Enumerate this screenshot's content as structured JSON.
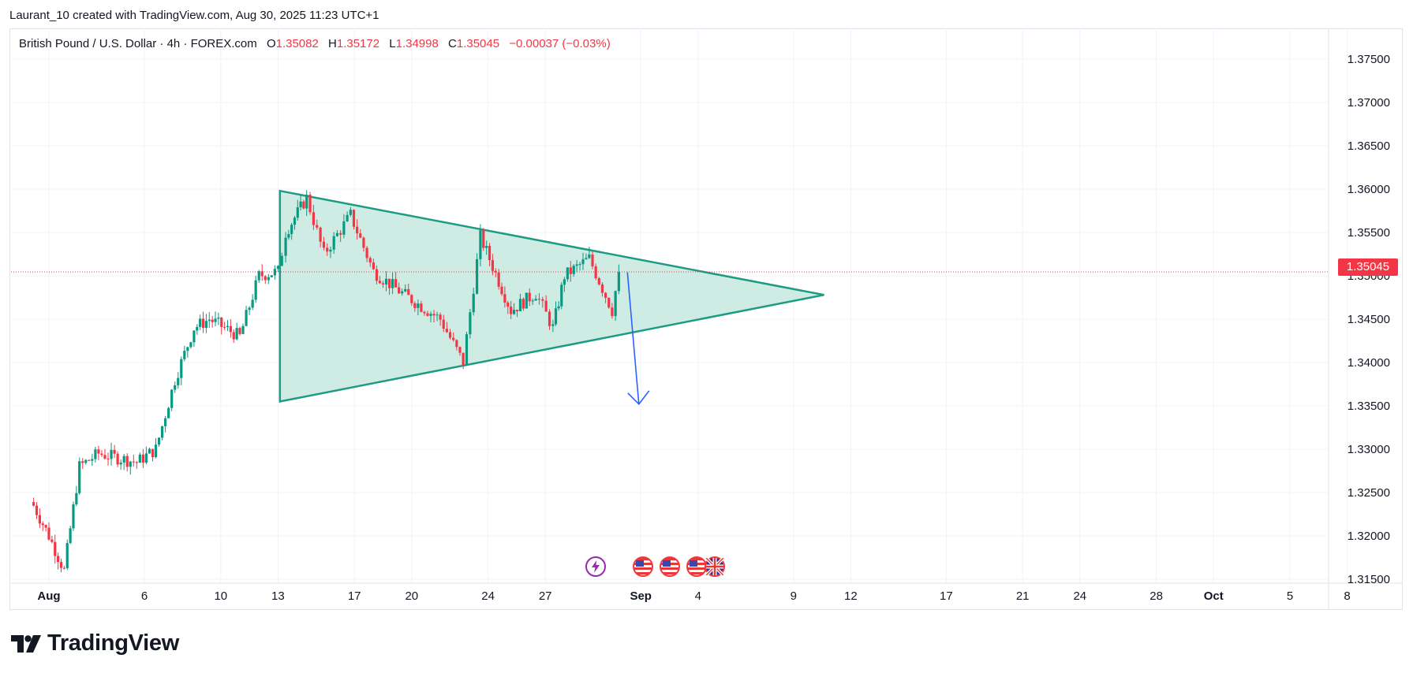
{
  "header": {
    "credit": "Laurant_10 created with TradingView.com, Aug 30, 2025 11:23 UTC+1"
  },
  "legend": {
    "symbol": "British Pound / U.S. Dollar · 4h · FOREX.com",
    "open_label": "O",
    "open": "1.35082",
    "high_label": "H",
    "high": "1.35172",
    "low_label": "L",
    "low": "1.34998",
    "close_label": "C",
    "close": "1.35045",
    "change": "−0.00037 (−0.03%)"
  },
  "current_price": {
    "label": "1.35045",
    "value": 1.35045
  },
  "brand": {
    "name": "TradingView"
  },
  "colors": {
    "up": "#089981",
    "down": "#f23645",
    "triangle_stroke": "#1e9b83",
    "triangle_fill": "#bfe6db",
    "arrow": "#2962ff",
    "grid": "#f0f3fa"
  },
  "events": [
    {
      "type": "lightning-icon",
      "color": "#9c27b0"
    },
    {
      "type": "us-flag-icon"
    },
    {
      "type": "us-flag-icon"
    },
    {
      "type": "us-flag-icon"
    },
    {
      "type": "uk-flag-icon"
    }
  ],
  "chart_data": {
    "type": "candlestick",
    "interval": "4h",
    "y_axis": {
      "ticks": [
        1.375,
        1.37,
        1.365,
        1.36,
        1.355,
        1.35,
        1.345,
        1.34,
        1.335,
        1.33,
        1.325,
        1.32,
        1.315
      ],
      "tick_labels": [
        "1.37500",
        "1.37000",
        "1.36500",
        "1.36000",
        "1.35500",
        "1.35000",
        "1.34500",
        "1.34000",
        "1.33500",
        "1.33000",
        "1.32500",
        "1.32000",
        "1.31500"
      ]
    },
    "x_axis": {
      "ticks": [
        {
          "label": "Aug",
          "day": 1
        },
        {
          "label": "6",
          "day": 6
        },
        {
          "label": "10",
          "day": 10
        },
        {
          "label": "13",
          "day": 13
        },
        {
          "label": "17",
          "day": 17
        },
        {
          "label": "20",
          "day": 20
        },
        {
          "label": "24",
          "day": 24
        },
        {
          "label": "27",
          "day": 27
        },
        {
          "label": "Sep",
          "day": 32
        },
        {
          "label": "4",
          "day": 35
        },
        {
          "label": "9",
          "day": 40
        },
        {
          "label": "12",
          "day": 43
        },
        {
          "label": "17",
          "day": 48
        },
        {
          "label": "21",
          "day": 52
        },
        {
          "label": "24",
          "day": 55
        },
        {
          "label": "28",
          "day": 59
        },
        {
          "label": "Oct",
          "day": 62
        },
        {
          "label": "5",
          "day": 66
        },
        {
          "label": "8",
          "day": 69
        }
      ]
    },
    "triangle": {
      "points": [
        {
          "day": 13.1,
          "price": 1.3598
        },
        {
          "day": 13.1,
          "price": 1.3355
        },
        {
          "day": 41.6,
          "price": 1.3478
        }
      ]
    },
    "arrow": {
      "from": {
        "day": 31.3,
        "price": 1.3504
      },
      "to": {
        "day": 31.9,
        "price": 1.3352
      }
    },
    "anchors": [
      {
        "day": 0.2,
        "price": 1.3235
      },
      {
        "day": 1.0,
        "price": 1.32
      },
      {
        "day": 1.8,
        "price": 1.316
      },
      {
        "day": 2.6,
        "price": 1.328
      },
      {
        "day": 3.6,
        "price": 1.3295
      },
      {
        "day": 4.6,
        "price": 1.329
      },
      {
        "day": 5.6,
        "price": 1.3285
      },
      {
        "day": 6.6,
        "price": 1.33
      },
      {
        "day": 7.6,
        "price": 1.338
      },
      {
        "day": 8.6,
        "price": 1.344
      },
      {
        "day": 9.4,
        "price": 1.345
      },
      {
        "day": 10.2,
        "price": 1.344
      },
      {
        "day": 11.0,
        "price": 1.343
      },
      {
        "day": 12.0,
        "price": 1.35
      },
      {
        "day": 13.0,
        "price": 1.3505
      },
      {
        "day": 13.4,
        "price": 1.355
      },
      {
        "day": 14.5,
        "price": 1.359
      },
      {
        "day": 15.4,
        "price": 1.3525
      },
      {
        "day": 16.8,
        "price": 1.357
      },
      {
        "day": 18.0,
        "price": 1.3505
      },
      {
        "day": 19.5,
        "price": 1.348
      },
      {
        "day": 21.5,
        "price": 1.345
      },
      {
        "day": 22.7,
        "price": 1.34
      },
      {
        "day": 23.6,
        "price": 1.3545
      },
      {
        "day": 25.2,
        "price": 1.346
      },
      {
        "day": 26.5,
        "price": 1.348
      },
      {
        "day": 27.4,
        "price": 1.344
      },
      {
        "day": 28.0,
        "price": 1.35
      },
      {
        "day": 29.3,
        "price": 1.352
      },
      {
        "day": 30.5,
        "price": 1.346
      },
      {
        "day": 30.85,
        "price": 1.35045
      }
    ]
  }
}
